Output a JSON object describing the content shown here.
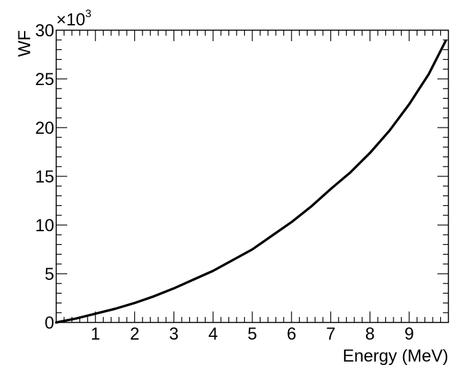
{
  "chart_data": {
    "type": "line",
    "title": "",
    "xlabel": "Energy (MeV)",
    "ylabel": "WF",
    "y_multiplier": {
      "base": "×10",
      "exponent": "3"
    },
    "xlim": [
      0,
      10
    ],
    "ylim": [
      0,
      30000
    ],
    "x_ticks": [
      1,
      2,
      3,
      4,
      5,
      6,
      7,
      8,
      9
    ],
    "x_tick_labels": [
      "1",
      "2",
      "3",
      "4",
      "5",
      "6",
      "7",
      "8",
      "9"
    ],
    "y_ticks": [
      0,
      5000,
      10000,
      15000,
      20000,
      25000,
      30000
    ],
    "y_tick_labels": [
      "0",
      "5",
      "10",
      "15",
      "20",
      "25",
      "30"
    ],
    "grid": false,
    "series": [
      {
        "x": [
          0.0,
          0.5,
          1.0,
          1.5,
          2.0,
          2.5,
          3.0,
          3.5,
          4.0,
          4.5,
          5.0,
          5.5,
          6.0,
          6.5,
          7.0,
          7.5,
          8.0,
          8.5,
          9.0,
          9.5,
          9.93
        ],
        "y": [
          0,
          400,
          900,
          1400,
          2000,
          2700,
          3500,
          4400,
          5300,
          6400,
          7500,
          8900,
          10300,
          11900,
          13700,
          15400,
          17400,
          19700,
          22400,
          25500,
          28900
        ]
      }
    ]
  }
}
